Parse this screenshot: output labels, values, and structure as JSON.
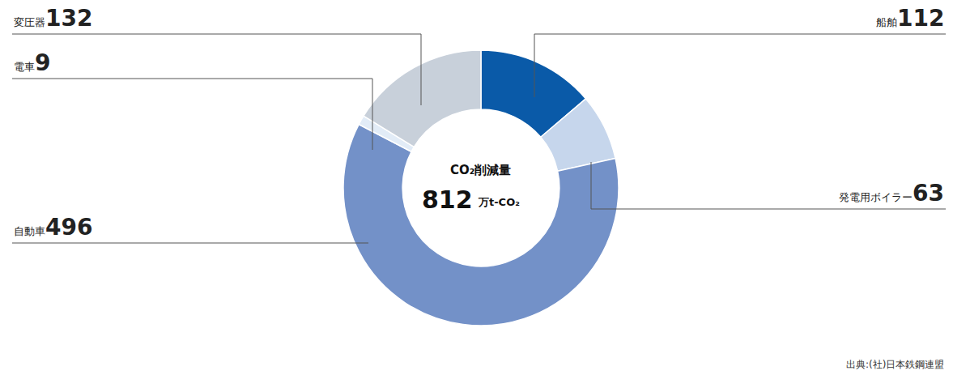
{
  "chart_data": {
    "type": "donut",
    "center_title": "CO₂削減量",
    "total": 812,
    "total_unit": "万t-CO₂",
    "categories": [
      "船舶",
      "発電用ボイラー",
      "自動車",
      "電車",
      "変圧器"
    ],
    "values": [
      112,
      63,
      496,
      9,
      132
    ],
    "colors": [
      "#0a5aa8",
      "#c6d6ec",
      "#7391c8",
      "#e2ecf7",
      "#c8d0da"
    ],
    "data_labels": true,
    "source": "出典:(社)日本鉄鋼連盟"
  }
}
